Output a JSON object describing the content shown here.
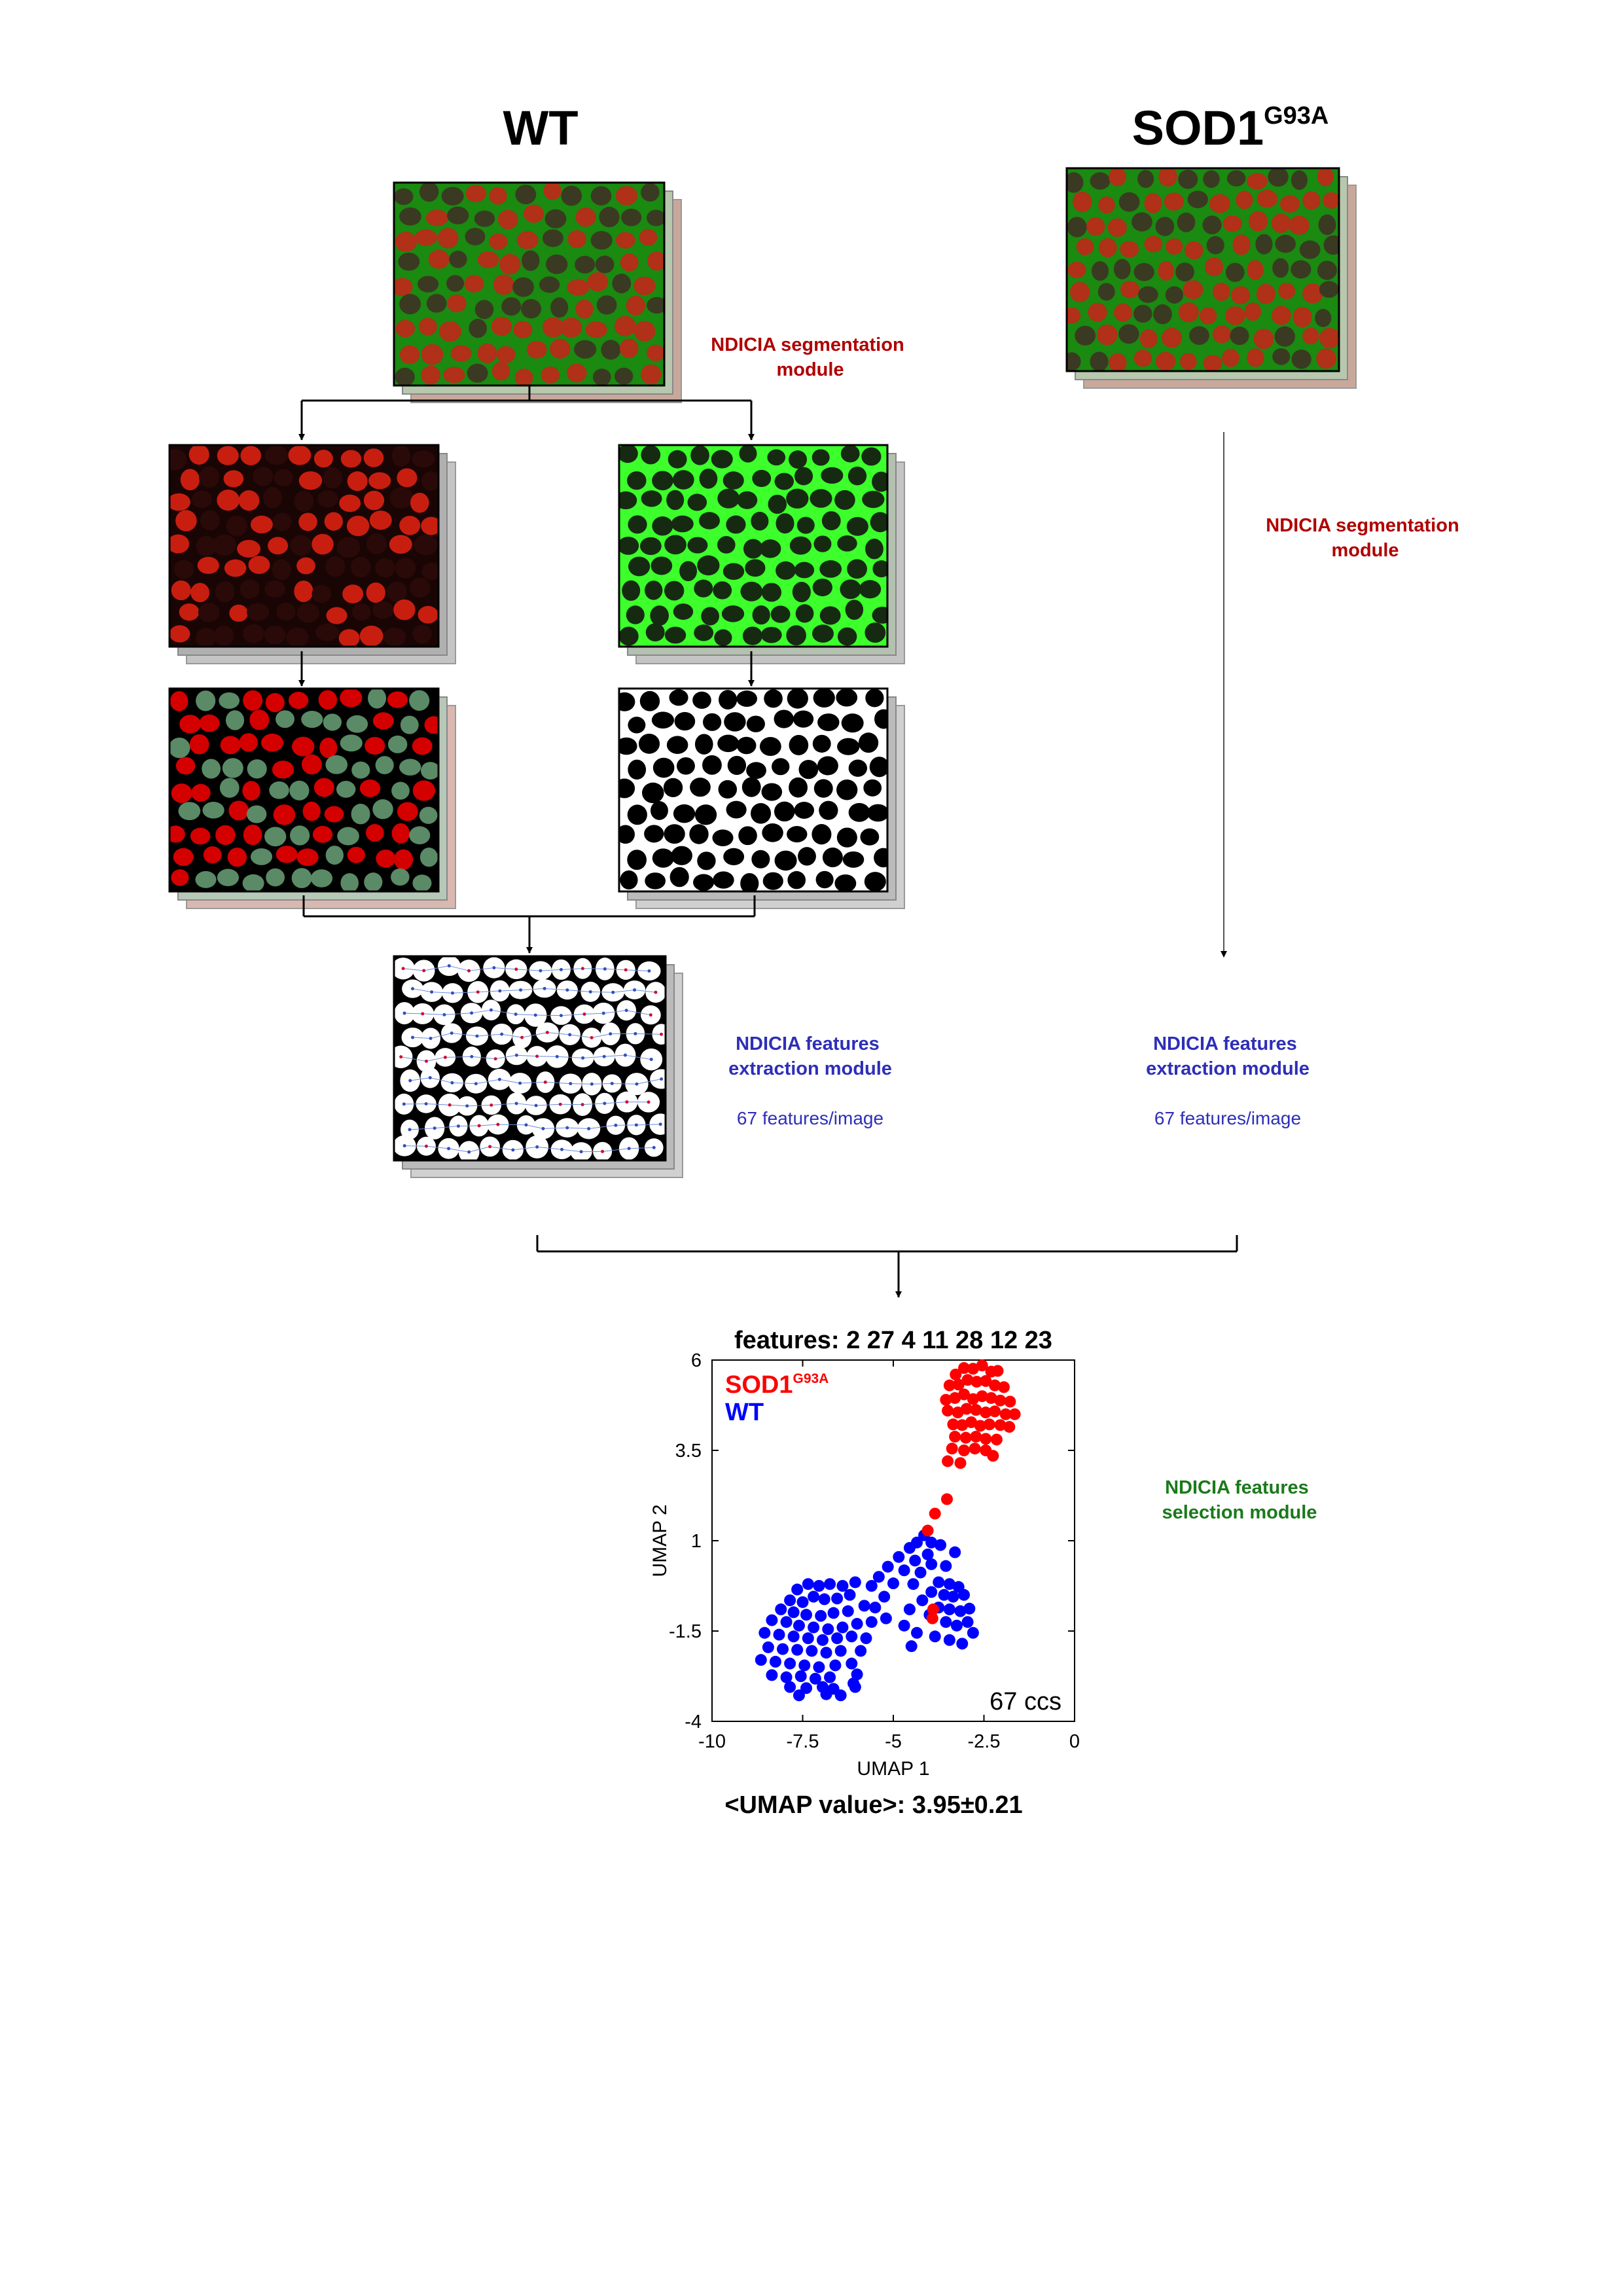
{
  "headings": {
    "wt": "WT",
    "sod_base": "SOD1",
    "sod_sup": "G93A"
  },
  "labels": {
    "segmentation_wt": [
      "NDICIA segmentation",
      "module"
    ],
    "segmentation_sod": [
      "NDICIA segmentation",
      "module"
    ],
    "features_wt": [
      "NDICIA features",
      "extraction module"
    ],
    "features_sod": [
      "NDICIA features",
      "extraction module"
    ],
    "count_wt": "67 features/image",
    "count_sod": "67 features/image",
    "selection": [
      "NDICIA features",
      "selection module"
    ]
  },
  "colors": {
    "segmentation": "#b00000",
    "extraction": "#2e2eb8",
    "selection": "#1a7a1a",
    "fiber_red": "#d40000",
    "fiber_green": "#5a8a66",
    "membrane_green": "#3cff2c"
  },
  "images": {
    "wt_merged": "fluorescence-merged-image",
    "sod_merged": "fluorescence-merged-image",
    "wt_red_channel": "red-channel-image",
    "wt_green_channel": "green-channel-image",
    "wt_classified": "fiber-type-classification-image",
    "wt_binary": "binary-segmentation-image",
    "wt_voronoi": "voronoi-graph-image"
  },
  "chart_data": {
    "type": "scatter",
    "title": "features: 2 27 4 11 28 12 23",
    "subtitle": "<UMAP value>: 3.95±0.21",
    "xlabel": "UMAP 1",
    "ylabel": "UMAP 2",
    "xlim": [
      -10,
      0
    ],
    "ylim": [
      -4,
      6
    ],
    "xticks": [
      "-10",
      "-7.5",
      "-5",
      "-2.5",
      "0"
    ],
    "yticks": [
      "6",
      "3.5",
      "1",
      "-1.5",
      "-4"
    ],
    "xtick_values": [
      -10,
      -7.5,
      -5,
      -2.5,
      0
    ],
    "ytick_values": [
      6,
      3.5,
      1,
      -1.5,
      -4
    ],
    "grid": false,
    "legend_position": "top-left",
    "annotation": "67 ccs",
    "series": [
      {
        "name": "SOD1",
        "name_sup": "G93A",
        "color": "#ff0000",
        "points": [
          [
            -3.28,
            5.6
          ],
          [
            -3.05,
            5.78
          ],
          [
            -2.8,
            5.76
          ],
          [
            -2.55,
            5.85
          ],
          [
            -2.3,
            5.68
          ],
          [
            -2.12,
            5.7
          ],
          [
            -3.45,
            5.3
          ],
          [
            -3.2,
            5.32
          ],
          [
            -2.95,
            5.45
          ],
          [
            -2.7,
            5.4
          ],
          [
            -2.45,
            5.42
          ],
          [
            -2.2,
            5.3
          ],
          [
            -1.95,
            5.25
          ],
          [
            -3.55,
            4.9
          ],
          [
            -3.3,
            4.95
          ],
          [
            -3.05,
            5.05
          ],
          [
            -2.8,
            4.92
          ],
          [
            -2.55,
            5.0
          ],
          [
            -2.3,
            4.95
          ],
          [
            -2.05,
            4.88
          ],
          [
            -1.78,
            4.85
          ],
          [
            -3.5,
            4.6
          ],
          [
            -3.22,
            4.55
          ],
          [
            -2.98,
            4.65
          ],
          [
            -2.72,
            4.62
          ],
          [
            -2.45,
            4.55
          ],
          [
            -2.2,
            4.58
          ],
          [
            -1.9,
            4.5
          ],
          [
            -1.65,
            4.5
          ],
          [
            -3.35,
            4.22
          ],
          [
            -3.1,
            4.2
          ],
          [
            -2.85,
            4.28
          ],
          [
            -2.6,
            4.18
          ],
          [
            -2.35,
            4.22
          ],
          [
            -2.05,
            4.2
          ],
          [
            -1.8,
            4.15
          ],
          [
            -3.3,
            3.88
          ],
          [
            -3.0,
            3.85
          ],
          [
            -2.72,
            3.88
          ],
          [
            -2.45,
            3.82
          ],
          [
            -2.15,
            3.8
          ],
          [
            -3.38,
            3.55
          ],
          [
            -3.05,
            3.5
          ],
          [
            -2.75,
            3.55
          ],
          [
            -2.45,
            3.5
          ],
          [
            -3.5,
            3.2
          ],
          [
            -3.15,
            3.15
          ],
          [
            -2.25,
            3.35
          ],
          [
            -3.52,
            2.15
          ],
          [
            -3.85,
            1.75
          ],
          [
            -4.05,
            1.28
          ],
          [
            -3.9,
            -0.9
          ],
          [
            -3.92,
            -1.15
          ]
        ]
      },
      {
        "name": "WT",
        "color": "#0000ff",
        "points": [
          [
            -4.15,
            1.15
          ],
          [
            -4.35,
            0.95
          ],
          [
            -3.95,
            0.95
          ],
          [
            -3.7,
            0.88
          ],
          [
            -3.3,
            0.68
          ],
          [
            -4.55,
            0.8
          ],
          [
            -4.05,
            0.62
          ],
          [
            -4.85,
            0.55
          ],
          [
            -4.4,
            0.45
          ],
          [
            -3.95,
            0.35
          ],
          [
            -3.55,
            0.3
          ],
          [
            -5.15,
            0.28
          ],
          [
            -4.7,
            0.18
          ],
          [
            -4.25,
            0.12
          ],
          [
            -5.4,
            0.0
          ],
          [
            -4.45,
            -0.2
          ],
          [
            -3.75,
            -0.15
          ],
          [
            -3.45,
            -0.2
          ],
          [
            -3.2,
            -0.28
          ],
          [
            -5.6,
            -0.25
          ],
          [
            -5.0,
            -0.18
          ],
          [
            -3.95,
            -0.42
          ],
          [
            -3.6,
            -0.5
          ],
          [
            -3.35,
            -0.55
          ],
          [
            -3.05,
            -0.5
          ],
          [
            -5.25,
            -0.55
          ],
          [
            -4.2,
            -0.65
          ],
          [
            -3.75,
            -0.85
          ],
          [
            -3.45,
            -0.9
          ],
          [
            -3.15,
            -0.95
          ],
          [
            -2.9,
            -0.88
          ],
          [
            -5.5,
            -0.85
          ],
          [
            -4.55,
            -0.9
          ],
          [
            -4.0,
            -1.05
          ],
          [
            -3.55,
            -1.25
          ],
          [
            -3.25,
            -1.35
          ],
          [
            -2.95,
            -1.25
          ],
          [
            -2.8,
            -1.55
          ],
          [
            -5.2,
            -1.15
          ],
          [
            -4.7,
            -1.35
          ],
          [
            -4.35,
            -1.55
          ],
          [
            -3.85,
            -1.65
          ],
          [
            -3.45,
            -1.75
          ],
          [
            -3.1,
            -1.85
          ],
          [
            -4.5,
            -1.92
          ],
          [
            -6.05,
            -0.15
          ],
          [
            -6.4,
            -0.25
          ],
          [
            -6.75,
            -0.2
          ],
          [
            -7.05,
            -0.25
          ],
          [
            -7.35,
            -0.2
          ],
          [
            -7.65,
            -0.35
          ],
          [
            -6.2,
            -0.5
          ],
          [
            -6.55,
            -0.6
          ],
          [
            -6.9,
            -0.62
          ],
          [
            -7.2,
            -0.55
          ],
          [
            -7.5,
            -0.7
          ],
          [
            -7.85,
            -0.65
          ],
          [
            -8.1,
            -0.9
          ],
          [
            -7.75,
            -0.98
          ],
          [
            -7.4,
            -1.05
          ],
          [
            -7.0,
            -1.08
          ],
          [
            -6.65,
            -1.0
          ],
          [
            -6.25,
            -0.95
          ],
          [
            -5.8,
            -0.8
          ],
          [
            -8.35,
            -1.2
          ],
          [
            -7.95,
            -1.25
          ],
          [
            -7.6,
            -1.35
          ],
          [
            -7.2,
            -1.4
          ],
          [
            -6.8,
            -1.45
          ],
          [
            -6.4,
            -1.4
          ],
          [
            -6.0,
            -1.3
          ],
          [
            -5.6,
            -1.25
          ],
          [
            -8.55,
            -1.55
          ],
          [
            -8.15,
            -1.6
          ],
          [
            -7.75,
            -1.65
          ],
          [
            -7.35,
            -1.7
          ],
          [
            -6.95,
            -1.75
          ],
          [
            -6.55,
            -1.7
          ],
          [
            -6.15,
            -1.65
          ],
          [
            -5.75,
            -1.7
          ],
          [
            -8.45,
            -1.95
          ],
          [
            -8.05,
            -2.0
          ],
          [
            -7.65,
            -2.02
          ],
          [
            -7.25,
            -2.05
          ],
          [
            -6.85,
            -2.1
          ],
          [
            -6.45,
            -2.05
          ],
          [
            -5.9,
            -2.05
          ],
          [
            -8.65,
            -2.3
          ],
          [
            -8.25,
            -2.35
          ],
          [
            -7.85,
            -2.4
          ],
          [
            -7.45,
            -2.45
          ],
          [
            -7.05,
            -2.5
          ],
          [
            -6.6,
            -2.45
          ],
          [
            -6.15,
            -2.4
          ],
          [
            -8.35,
            -2.72
          ],
          [
            -7.95,
            -2.78
          ],
          [
            -7.55,
            -2.75
          ],
          [
            -7.15,
            -2.82
          ],
          [
            -6.75,
            -2.78
          ],
          [
            -6.0,
            -2.7
          ],
          [
            -6.1,
            -2.95
          ],
          [
            -7.85,
            -3.05
          ],
          [
            -7.4,
            -3.08
          ],
          [
            -6.95,
            -3.05
          ],
          [
            -6.65,
            -3.1
          ],
          [
            -6.05,
            -3.05
          ],
          [
            -7.6,
            -3.28
          ],
          [
            -6.85,
            -3.25
          ],
          [
            -6.45,
            -3.28
          ]
        ]
      }
    ]
  }
}
